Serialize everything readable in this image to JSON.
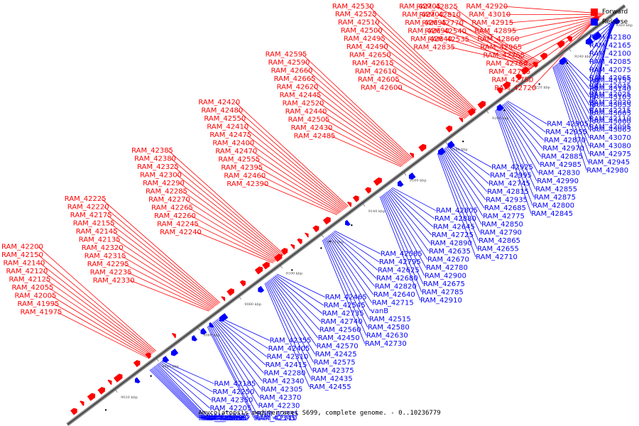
{
  "legend": {
    "items": [
      {
        "label": "Forward",
        "color": "#ff0000"
      },
      {
        "label": "Reverse",
        "color": "#0000ff"
      }
    ]
  },
  "caption": "Amycolatopsis mediterranei S699, complete genome. - 0..10236779",
  "ticks": [
    "9020 kbp",
    "9040 kbp",
    "9060 kbp",
    "9080 kbp",
    "9100 kbp",
    "9120 kbp",
    "9140 kbp",
    "9160 kbp",
    "9180 kbp",
    "9200 kbp",
    "9220 kbp",
    "9240 kbp",
    "9260 kbp"
  ],
  "forward_labels": [
    "RAM_42920",
    "RAM_43010",
    "RAM_42915",
    "RAM_42895",
    "RAM_42860",
    "RAM_42965",
    "RAM_42765",
    "RAM_42760",
    "RAM_42755",
    "RAM_42750",
    "RAM_42720",
    "RAM_42705",
    "RAM_42700",
    "RAM_42695",
    "RAM_42690",
    "RAM_42840",
    "RAM_42835",
    "RAM_42825",
    "RAM_42810",
    "RAM_42770",
    "RAM_42540",
    "RAM_42535",
    "RAM_42530",
    "RAM_42525",
    "RAM_42510",
    "RAM_42500",
    "RAM_42495",
    "RAM_42490",
    "RAM_42650",
    "RAM_42615",
    "RAM_42610",
    "RAM_42605",
    "RAM_42600",
    "RAM_42595",
    "RAM_42590",
    "RAM_42660",
    "RAM_42665",
    "RAM_42620",
    "RAM_42445",
    "RAM_42520",
    "RAM_42440",
    "RAM_42505",
    "RAM_42430",
    "RAM_42485",
    "RAM_42420",
    "RAM_42480",
    "RAM_42550",
    "RAM_42410",
    "RAM_42475",
    "RAM_42400",
    "RAM_42470",
    "RAM_42555",
    "RAM_42395",
    "RAM_42460",
    "RAM_42390",
    "RAM_42385",
    "RAM_42380",
    "RAM_42325",
    "RAM_42300",
    "RAM_42290",
    "RAM_42285",
    "RAM_42270",
    "RAM_42265",
    "RAM_42260",
    "RAM_42245",
    "RAM_42240",
    "RAM_42225",
    "RAM_42220",
    "RAM_42175",
    "RAM_42155",
    "RAM_42145",
    "RAM_42135",
    "RAM_42320",
    "RAM_42315",
    "RAM_42295",
    "RAM_42235",
    "RAM_42330",
    "RAM_42200",
    "RAM_42150",
    "RAM_42140",
    "RAM_42120",
    "RAM_42125",
    "RAM_42055",
    "RAM_42005",
    "RAM_41995",
    "RAM_41975"
  ],
  "reverse_labels": [
    "RAM_42180",
    "RAM_42165",
    "RAM_42100",
    "RAM_42085",
    "RAM_42075",
    "RAM_42065",
    "RAM_42045",
    "RAM_42025",
    "RAM_42020",
    "RAM_42215",
    "RAM_42110",
    "RAM_42095",
    "RAM_43155",
    "RAM_43140",
    "RAM_43105",
    "RAM_43035",
    "RAM_43005",
    "RAM_43000",
    "RAM_43065",
    "RAM_43070",
    "RAM_43080",
    "RAM_42975",
    "RAM_42945",
    "RAM_42980",
    "RAM_42905",
    "RAM_42955",
    "RAM_42870",
    "RAM_42970",
    "RAM_42885",
    "RAM_42985",
    "RAM_42830",
    "RAM_42990",
    "RAM_42855",
    "RAM_42875",
    "RAM_42800",
    "RAM_42845",
    "RAM_42925",
    "RAM_42995",
    "RAM_42745",
    "RAM_42815",
    "RAM_42935",
    "RAM_42685",
    "RAM_42775",
    "RAM_42850",
    "RAM_42790",
    "RAM_42865",
    "RAM_42655",
    "RAM_42710",
    "RAM_42805",
    "RAM_42880",
    "RAM_42645",
    "RAM_42725",
    "RAM_42890",
    "RAM_42635",
    "RAM_42670",
    "RAM_42780",
    "RAM_42900",
    "RAM_42675",
    "RAM_42785",
    "RAM_42910",
    "RAM_42585",
    "RAM_42795",
    "RAM_42625",
    "RAM_42680",
    "RAM_42820",
    "RAM_42640",
    "RAM_42715",
    "vanB",
    "RAM_42515",
    "RAM_42580",
    "RAM_42630",
    "RAM_42730",
    "RAM_42465",
    "RAM_42545",
    "RAM_42735",
    "RAM_42740",
    "RAM_42560",
    "RAM_42450",
    "RAM_42570",
    "RAM_42425",
    "RAM_42575",
    "RAM_42375",
    "RAM_42435",
    "RAM_42455",
    "RAM_42355",
    "RAM_42405",
    "RAM_42310",
    "RAM_42415",
    "RAM_42280",
    "RAM_42340",
    "RAM_42305",
    "RAM_42370",
    "RAM_42230",
    "RAM_42335",
    "RAM_42210",
    "RAM_42345",
    "RAM_42185",
    "RAM_42250",
    "RAM_42350",
    "RAM_42205",
    "RAM_42275",
    "RAM_42130",
    "RAM_42195",
    "RAM_42255",
    "RAM_42360",
    "RAM_42115",
    "RAM_42365",
    "RAM_42060"
  ]
}
